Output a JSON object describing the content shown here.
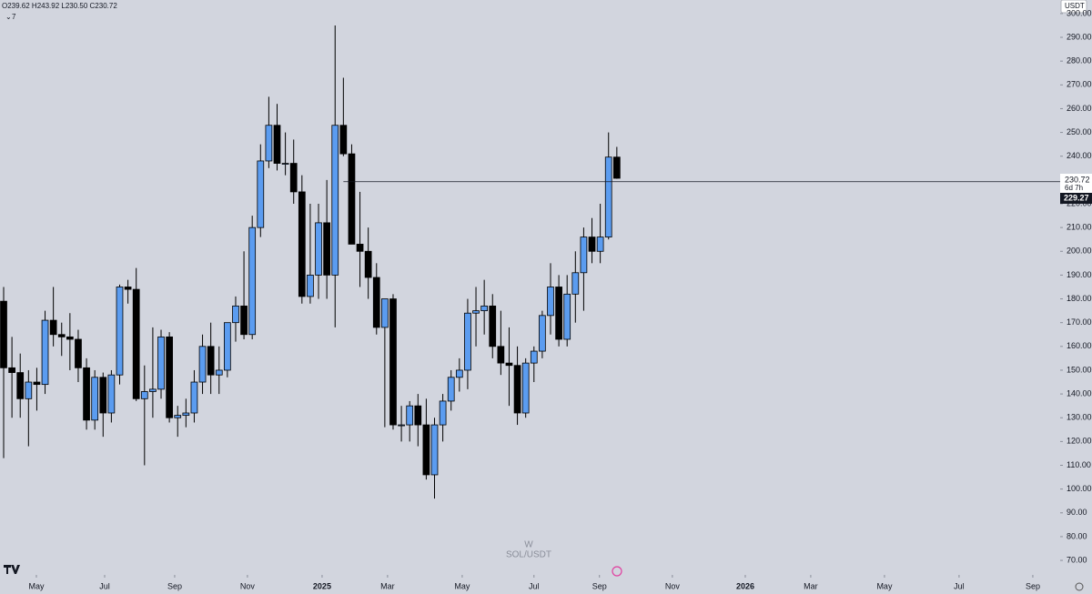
{
  "chart_data": {
    "type": "candlestick",
    "legend": "O239.62 H243.92 L230.50 C230.72",
    "indicators_count": "7",
    "currency": "USDT",
    "interval": "W",
    "symbol": "SOL/USDT",
    "countdown": "6d 7h",
    "hline": 229.27,
    "up_color": "#5b9cf0",
    "down_color": "#000000",
    "open": [
      179,
      151,
      149,
      138,
      145,
      144,
      171,
      165,
      164,
      163,
      151,
      129,
      147,
      132,
      148,
      185,
      184,
      138,
      141,
      142,
      164,
      130,
      131,
      132,
      145,
      160,
      148,
      150,
      170,
      177,
      165,
      210,
      238,
      253,
      237,
      237,
      225,
      181,
      190,
      212,
      190,
      253,
      241,
      203,
      200,
      189,
      168,
      180,
      127,
      127,
      135,
      127,
      106,
      127,
      137,
      147,
      150,
      174,
      175,
      177,
      160,
      153,
      152,
      132,
      153,
      158,
      173,
      185,
      163,
      182,
      191,
      206,
      200,
      206,
      239.62
    ],
    "high": [
      185,
      164,
      157,
      150,
      151,
      175,
      185,
      170,
      174,
      167,
      155,
      150,
      149,
      150,
      186,
      188,
      193,
      152,
      168,
      167,
      166,
      135,
      138,
      150,
      165,
      170,
      160,
      170,
      181,
      200,
      215,
      245,
      265,
      262,
      250,
      247,
      232,
      220,
      220,
      230,
      295,
      273,
      245,
      225,
      210,
      195,
      178,
      182,
      135,
      137,
      140,
      138,
      130,
      140,
      150,
      155,
      180,
      185,
      188,
      182,
      175,
      168,
      160,
      155,
      160,
      175,
      195,
      190,
      190,
      200,
      210,
      214,
      220,
      250,
      243.92
    ],
    "low": [
      113,
      130,
      130,
      118,
      133,
      140,
      160,
      156,
      150,
      145,
      125,
      125,
      122,
      128,
      144,
      178,
      137,
      110,
      130,
      138,
      128,
      122,
      126,
      128,
      140,
      140,
      140,
      147,
      162,
      163,
      163,
      206,
      235,
      234,
      232,
      220,
      178,
      178,
      180,
      180,
      168,
      240,
      203,
      185,
      180,
      165,
      126,
      125,
      120,
      120,
      118,
      104,
      96,
      120,
      133,
      141,
      142,
      160,
      165,
      155,
      148,
      135,
      127,
      130,
      145,
      155,
      165,
      160,
      160,
      170,
      175,
      195,
      195,
      205,
      230.5
    ],
    "close": [
      151,
      149,
      138,
      145,
      144,
      171,
      165,
      164,
      163,
      151,
      129,
      147,
      132,
      148,
      185,
      184,
      138,
      141,
      142,
      164,
      130,
      131,
      132,
      145,
      160,
      148,
      150,
      170,
      177,
      165,
      210,
      238,
      253,
      237,
      237,
      225,
      181,
      190,
      212,
      190,
      253,
      241,
      203,
      200,
      189,
      168,
      180,
      127,
      127,
      135,
      127,
      106,
      127,
      137,
      147,
      150,
      174,
      175,
      177,
      160,
      153,
      152,
      132,
      153,
      158,
      173,
      185,
      163,
      182,
      191,
      206,
      200,
      206,
      239.62,
      230.72
    ],
    "ylim": [
      63.9,
      305.7
    ],
    "yticks": [
      {
        "value": 70,
        "label": "70.00"
      },
      {
        "value": 80,
        "label": "80.00"
      },
      {
        "value": 90,
        "label": "90.00"
      },
      {
        "value": 100,
        "label": "100.00"
      },
      {
        "value": 110,
        "label": "110.00"
      },
      {
        "value": 120,
        "label": "120.00"
      },
      {
        "value": 130,
        "label": "130.00"
      },
      {
        "value": 140,
        "label": "140.00"
      },
      {
        "value": 150,
        "label": "150.00"
      },
      {
        "value": 160,
        "label": "160.00"
      },
      {
        "value": 170,
        "label": "170.00"
      },
      {
        "value": 180,
        "label": "180.00"
      },
      {
        "value": 190,
        "label": "190.00"
      },
      {
        "value": 200,
        "label": "200.00"
      },
      {
        "value": 210,
        "label": "210.00"
      },
      {
        "value": 220,
        "label": "220.00"
      },
      {
        "value": 230,
        "label": "230.00"
      },
      {
        "value": 240,
        "label": "240.00"
      },
      {
        "value": 250,
        "label": "250.00"
      },
      {
        "value": 260,
        "label": "260.00"
      },
      {
        "value": 270,
        "label": "270.00"
      },
      {
        "value": 280,
        "label": "280.00"
      },
      {
        "value": 290,
        "label": "290.00"
      },
      {
        "value": 300,
        "label": "300.00"
      }
    ],
    "xlim": [
      -0.44,
      127.5
    ],
    "xticks": [
      {
        "value": 3.95,
        "label": "May"
      },
      {
        "value": 12.19,
        "label": "Jul"
      },
      {
        "value": 20.64,
        "label": "Sep"
      },
      {
        "value": 29.42,
        "label": "Nov"
      },
      {
        "value": 38.43,
        "label": "2025"
      },
      {
        "value": 46.33,
        "label": "Mar"
      },
      {
        "value": 55.34,
        "label": "May"
      },
      {
        "value": 64.0,
        "label": "Jul"
      },
      {
        "value": 71.9,
        "label": "Sep"
      },
      {
        "value": 80.7,
        "label": "Nov"
      },
      {
        "value": 89.5,
        "label": "2026"
      },
      {
        "value": 97.4,
        "label": "Mar"
      },
      {
        "value": 106.3,
        "label": "May"
      },
      {
        "value": 115.3,
        "label": "Jul"
      },
      {
        "value": 124.2,
        "label": "Sep"
      }
    ],
    "hline_start": 41
  }
}
